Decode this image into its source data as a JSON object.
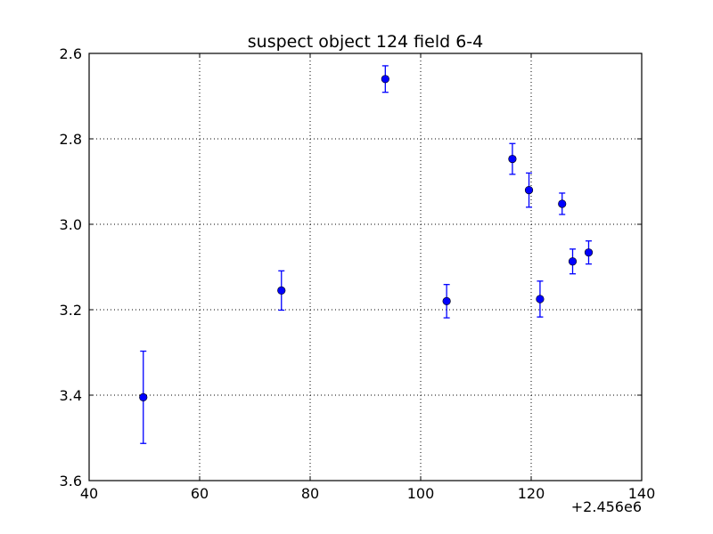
{
  "chart_data": {
    "type": "scatter",
    "title": "suspect object 124 field 6-4",
    "xlabel": "",
    "ylabel": "",
    "x_offset_label": "+2.456e6",
    "xlim": [
      40,
      140
    ],
    "ylim": [
      2.6,
      3.6
    ],
    "y_inverted": true,
    "grid": true,
    "x_ticks": [
      40,
      60,
      80,
      100,
      120,
      140
    ],
    "y_ticks": [
      2.6,
      2.8,
      3.0,
      3.2,
      3.4,
      3.6
    ],
    "x_tick_labels": [
      "40",
      "60",
      "80",
      "100",
      "120",
      "140"
    ],
    "y_tick_labels": [
      "2.6",
      "2.8",
      "3.0",
      "3.2",
      "3.4",
      "3.6"
    ],
    "marker_color": "#0000ff",
    "points": [
      {
        "x": 49.8,
        "y": 3.405,
        "err": 0.108
      },
      {
        "x": 74.8,
        "y": 3.155,
        "err": 0.046
      },
      {
        "x": 93.6,
        "y": 2.66,
        "err": 0.031
      },
      {
        "x": 104.7,
        "y": 3.18,
        "err": 0.039
      },
      {
        "x": 116.6,
        "y": 2.847,
        "err": 0.036
      },
      {
        "x": 119.6,
        "y": 2.92,
        "err": 0.04
      },
      {
        "x": 121.6,
        "y": 3.175,
        "err": 0.042
      },
      {
        "x": 125.6,
        "y": 2.952,
        "err": 0.025
      },
      {
        "x": 127.5,
        "y": 3.087,
        "err": 0.029
      },
      {
        "x": 130.4,
        "y": 3.066,
        "err": 0.027
      }
    ]
  }
}
